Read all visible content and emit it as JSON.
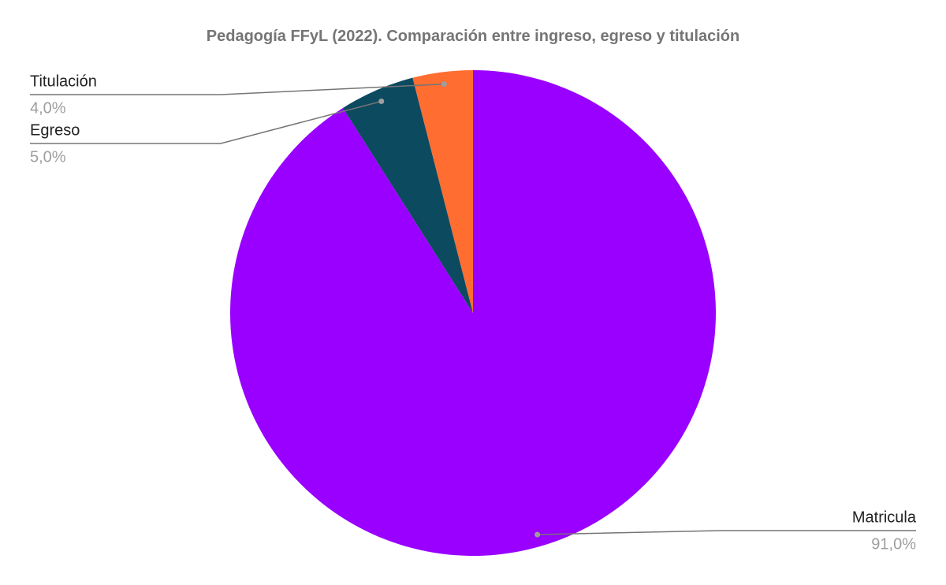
{
  "chart_data": {
    "type": "pie",
    "title": "Pedagogía FFyL (2022). Comparación entre ingreso, egreso y titulación",
    "categories": [
      "Matricula",
      "Egreso",
      "Titulación"
    ],
    "values": [
      91,
      5,
      4
    ],
    "value_labels": [
      "91,0%",
      "5,0%",
      "4,0%"
    ],
    "colors": [
      "#9900ff",
      "#0c4a60",
      "#ff6d31"
    ]
  }
}
